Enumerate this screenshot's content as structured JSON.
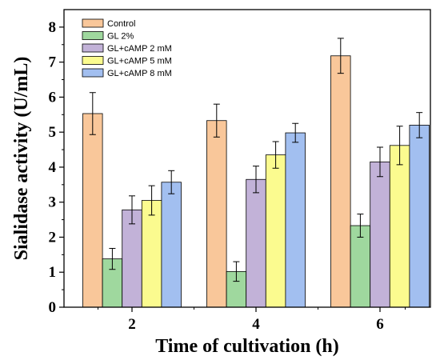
{
  "chart_data": {
    "type": "bar",
    "xlabel": "Time of cultivation (h)",
    "ylabel": "Sialidase activity (U/mL)",
    "categories": [
      "2",
      "4",
      "6"
    ],
    "ylim": [
      0,
      8.5
    ],
    "yticks": [
      0,
      1,
      2,
      3,
      4,
      5,
      6,
      7,
      8
    ],
    "grid": false,
    "legend_position": "top-left",
    "series": [
      {
        "name": "Control",
        "color": "#F9C79A",
        "values": [
          5.53,
          5.33,
          7.18
        ],
        "errors": [
          0.6,
          0.47,
          0.5
        ]
      },
      {
        "name": "GL 2%",
        "color": "#9FD89E",
        "values": [
          1.38,
          1.02,
          2.33
        ],
        "errors": [
          0.3,
          0.28,
          0.33
        ]
      },
      {
        "name": "GL+cAMP 2 mM",
        "color": "#C2B2D8",
        "values": [
          2.78,
          3.65,
          4.15
        ],
        "errors": [
          0.4,
          0.38,
          0.42
        ]
      },
      {
        "name": "GL+cAMP 5 mM",
        "color": "#FBFB8F",
        "values": [
          3.05,
          4.35,
          4.62
        ],
        "errors": [
          0.42,
          0.38,
          0.55
        ]
      },
      {
        "name": "GL+cAMP 8 mM",
        "color": "#A2BFF0",
        "values": [
          3.57,
          4.98,
          5.2
        ],
        "errors": [
          0.33,
          0.27,
          0.36
        ]
      }
    ]
  }
}
